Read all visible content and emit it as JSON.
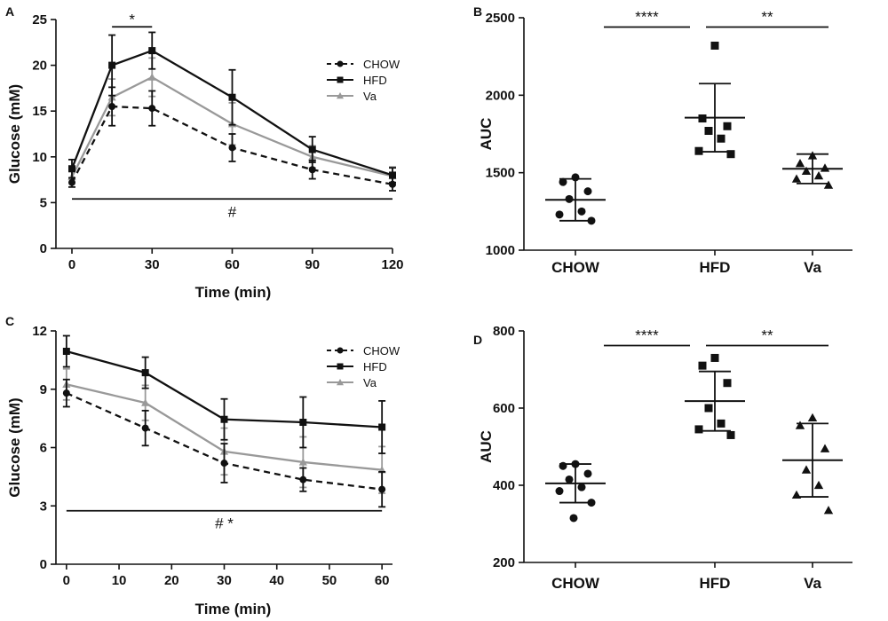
{
  "colors": {
    "chow": "#111111",
    "hfd": "#111111",
    "va": "#999999"
  },
  "chart_data": [
    {
      "panel": "A",
      "type": "line",
      "xlabel": "Time (min)",
      "ylabel": "Glucose (mM)",
      "xlim": [
        0,
        120
      ],
      "ylim": [
        0,
        25
      ],
      "xticks": [
        0,
        30,
        60,
        90,
        120
      ],
      "yticks": [
        0,
        5,
        10,
        15,
        20,
        25
      ],
      "legend_position": "top-right",
      "series": [
        {
          "name": "CHOW",
          "style": "dashed",
          "marker": "circle",
          "color": "#111111",
          "x": [
            0,
            15,
            30,
            60,
            90,
            120
          ],
          "y": [
            7.2,
            15.5,
            15.3,
            11.0,
            8.6,
            7.0
          ],
          "err": [
            0.5,
            2.1,
            1.9,
            1.5,
            1.0,
            0.7
          ]
        },
        {
          "name": "HFD",
          "style": "solid",
          "marker": "square",
          "color": "#111111",
          "x": [
            0,
            15,
            30,
            60,
            90,
            120
          ],
          "y": [
            8.7,
            20.0,
            21.6,
            16.5,
            10.8,
            8.0
          ],
          "err": [
            1.0,
            3.3,
            2.0,
            3.0,
            1.4,
            0.8
          ]
        },
        {
          "name": "Va",
          "style": "solid",
          "marker": "triangle",
          "color": "#999999",
          "x": [
            0,
            15,
            30,
            60,
            90,
            120
          ],
          "y": [
            7.8,
            16.5,
            18.7,
            13.6,
            10.0,
            7.9
          ],
          "err": [
            0.6,
            2.0,
            2.1,
            2.3,
            1.2,
            1.0
          ]
        }
      ],
      "annotations": [
        {
          "text": "*",
          "x_from": 15,
          "x_to": 30,
          "y": 24.2
        },
        {
          "text": "#",
          "x_from": 0,
          "x_to": 120,
          "y": 5.4
        }
      ]
    },
    {
      "panel": "B",
      "type": "scatter",
      "xlabel": "",
      "ylabel": "AUC",
      "ylim": [
        1000,
        2500
      ],
      "yticks": [
        1000,
        1500,
        2000,
        2500
      ],
      "categories": [
        "CHOW",
        "HFD",
        "Va"
      ],
      "markers": [
        "circle",
        "square",
        "triangle"
      ],
      "points": [
        [
          1470,
          1440,
          1380,
          1330,
          1250,
          1230,
          1190
        ],
        [
          2320,
          1850,
          1800,
          1770,
          1720,
          1640,
          1620
        ],
        [
          1610,
          1560,
          1530,
          1510,
          1480,
          1460,
          1420
        ]
      ],
      "mean": [
        1325,
        1855,
        1525
      ],
      "sd": [
        135,
        220,
        95
      ],
      "comparisons": [
        {
          "label": "****",
          "from": "CHOW",
          "to": "HFD",
          "y": 2440
        },
        {
          "label": "**",
          "from": "HFD",
          "to": "Va",
          "y": 2440
        }
      ]
    },
    {
      "panel": "C",
      "type": "line",
      "xlabel": "Time (min)",
      "ylabel": "Glucose (mM)",
      "xlim": [
        -2,
        62
      ],
      "ylim": [
        0,
        12
      ],
      "xticks": [
        0,
        10,
        20,
        30,
        40,
        50,
        60
      ],
      "yticks": [
        0,
        3,
        6,
        9,
        12
      ],
      "legend_position": "top-right",
      "series": [
        {
          "name": "CHOW",
          "style": "dashed",
          "marker": "circle",
          "color": "#111111",
          "x": [
            0,
            15,
            30,
            45,
            60
          ],
          "y": [
            8.8,
            7.0,
            5.2,
            4.35,
            3.85
          ],
          "err": [
            0.7,
            0.9,
            1.0,
            0.6,
            0.9
          ]
        },
        {
          "name": "HFD",
          "style": "solid",
          "marker": "square",
          "color": "#111111",
          "x": [
            0,
            15,
            30,
            45,
            60
          ],
          "y": [
            10.95,
            9.85,
            7.45,
            7.3,
            7.05
          ],
          "err": [
            0.8,
            0.8,
            1.05,
            1.3,
            1.35
          ]
        },
        {
          "name": "Va",
          "style": "solid",
          "marker": "triangle",
          "color": "#999999",
          "x": [
            0,
            15,
            30,
            45,
            60
          ],
          "y": [
            9.25,
            8.3,
            5.8,
            5.25,
            4.85
          ],
          "err": [
            0.8,
            0.9,
            1.2,
            1.3,
            1.2
          ]
        }
      ],
      "annotations": [
        {
          "text": "# *",
          "x_from": 0,
          "x_to": 60,
          "y": 2.75
        }
      ]
    },
    {
      "panel": "D",
      "type": "scatter",
      "xlabel": "",
      "ylabel": "AUC",
      "ylim": [
        200,
        800
      ],
      "yticks": [
        200,
        400,
        600,
        800
      ],
      "categories": [
        "CHOW",
        "HFD",
        "Va"
      ],
      "markers": [
        "circle",
        "square",
        "triangle"
      ],
      "points": [
        [
          455,
          450,
          430,
          415,
          395,
          385,
          355,
          315
        ],
        [
          730,
          710,
          665,
          600,
          560,
          545,
          530
        ],
        [
          575,
          555,
          495,
          440,
          400,
          375,
          335
        ]
      ],
      "mean": [
        405,
        618,
        465
      ],
      "sd": [
        50,
        77,
        95
      ],
      "comparisons": [
        {
          "label": "****",
          "from": "CHOW",
          "to": "HFD",
          "y": 762
        },
        {
          "label": "**",
          "from": "HFD",
          "to": "Va",
          "y": 762
        }
      ]
    }
  ]
}
